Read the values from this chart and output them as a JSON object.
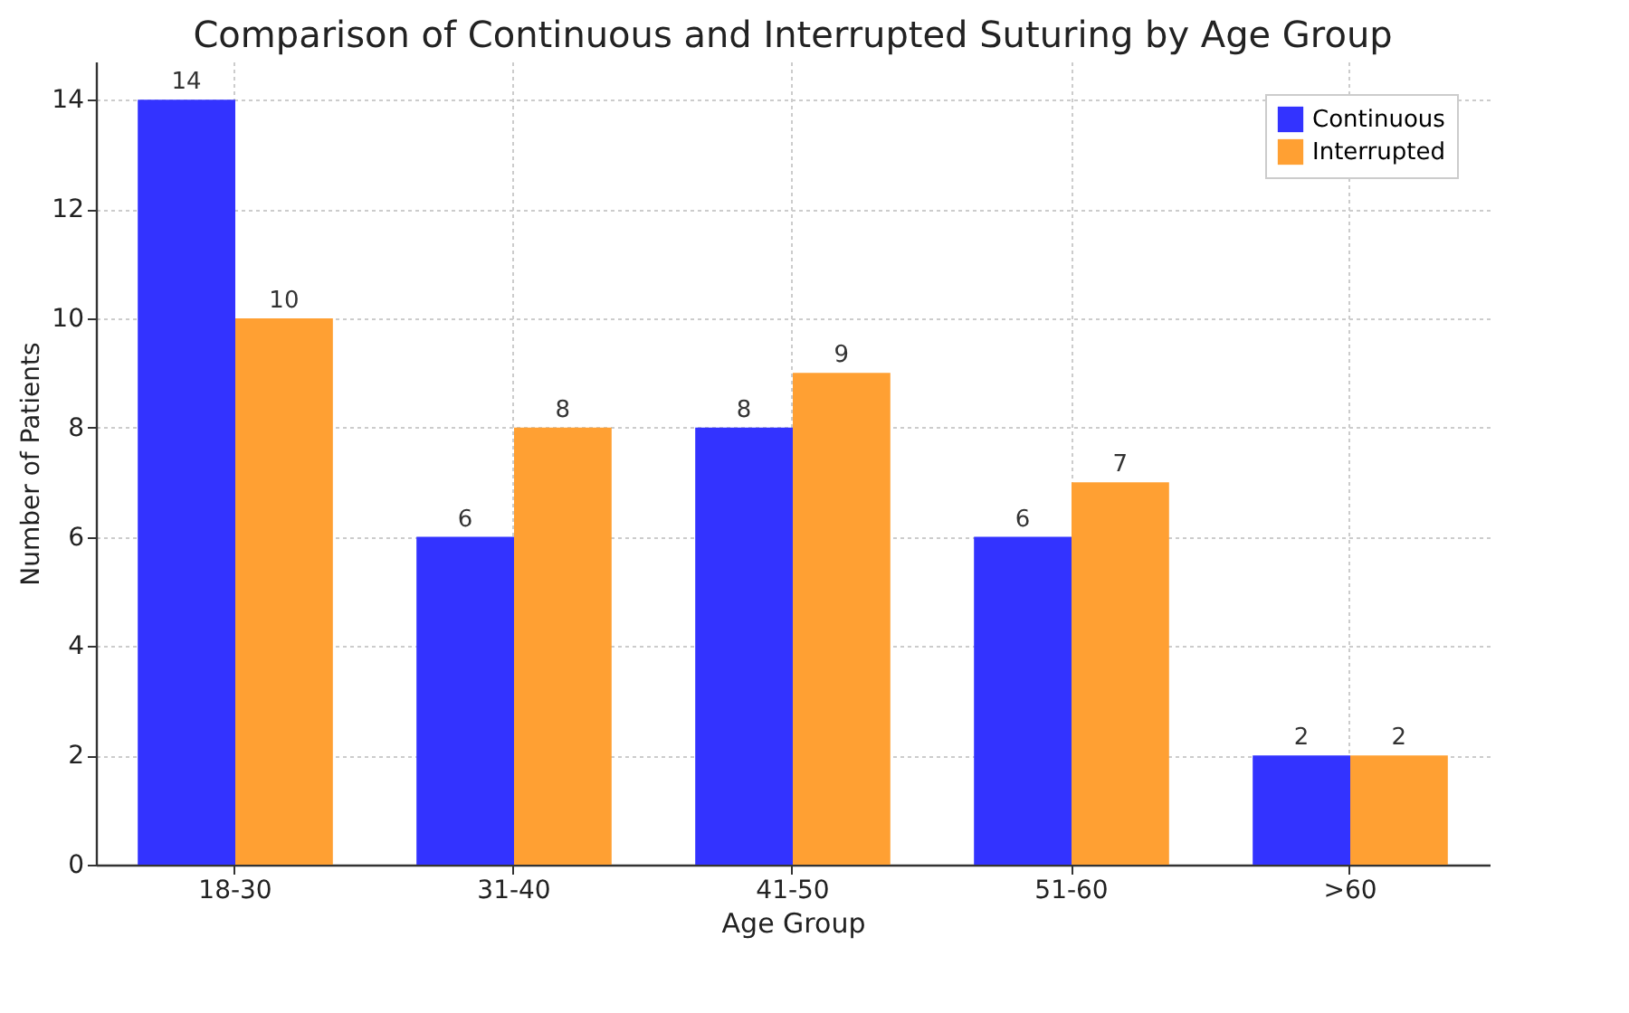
{
  "chart_data": {
    "type": "bar",
    "title": "Comparison of Continuous and Interrupted Suturing by Age Group",
    "xlabel": "Age Group",
    "ylabel": "Number of Patients",
    "categories": [
      "18-30",
      "31-40",
      "41-50",
      "51-60",
      ">60"
    ],
    "series": [
      {
        "name": "Continuous",
        "color": "#3333ff",
        "values": [
          14,
          6,
          8,
          6,
          2
        ]
      },
      {
        "name": "Interrupted",
        "color": "#ffa033",
        "values": [
          10,
          8,
          9,
          7,
          2
        ]
      }
    ],
    "ylim": [
      0,
      14.7
    ],
    "yticks": [
      0,
      2,
      4,
      6,
      8,
      10,
      12,
      14
    ],
    "grid": true,
    "legend": "top right",
    "data_labels": true
  }
}
